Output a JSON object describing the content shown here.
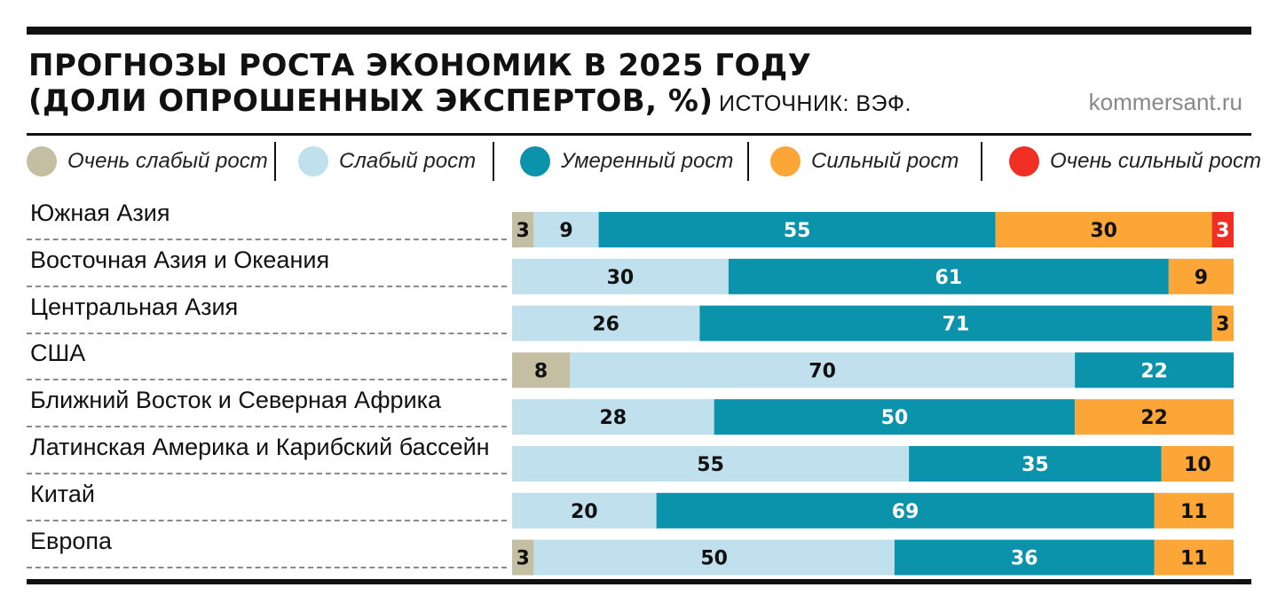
{
  "header": {
    "title_line1": "ПРОГНОЗЫ РОСТА ЭКОНОМИК В 2025 ГОДУ",
    "title_line2": "(ДОЛИ ОПРОШЕННЫХ ЭКСПЕРТОВ, %)",
    "source": "ИСТОЧНИК: ВЭФ.",
    "site": "kommersant.ru"
  },
  "chart_data": {
    "type": "bar",
    "orientation": "horizontal",
    "stacked": true,
    "unit": "%",
    "categories": [
      "Южная Азия",
      "Восточная Азия и Океания",
      "Центральная Азия",
      "США",
      "Ближний Восток и Северная Африка",
      "Латинская Америка и Карибский бассейн",
      "Китай",
      "Европа"
    ],
    "series": [
      {
        "name": "Очень слабый рост",
        "color": "#c4bfa3",
        "label_color": "#111111",
        "values": [
          3,
          0,
          0,
          8,
          0,
          0,
          0,
          3
        ]
      },
      {
        "name": "Слабый рост",
        "color": "#bfe0ec",
        "label_color": "#111111",
        "values": [
          9,
          30,
          26,
          70,
          28,
          55,
          20,
          50
        ]
      },
      {
        "name": "Умеренный рост",
        "color": "#0b93ab",
        "label_color": "#ffffff",
        "values": [
          55,
          61,
          71,
          22,
          50,
          35,
          69,
          36
        ]
      },
      {
        "name": "Сильный рост",
        "color": "#fba637",
        "label_color": "#111111",
        "values": [
          30,
          9,
          3,
          0,
          22,
          10,
          11,
          11
        ]
      },
      {
        "name": "Очень сильный рост",
        "color": "#ef2f24",
        "label_color": "#ffffff",
        "values": [
          3,
          0,
          0,
          0,
          0,
          0,
          0,
          0
        ]
      }
    ],
    "legend_position": "top",
    "grid": false
  }
}
